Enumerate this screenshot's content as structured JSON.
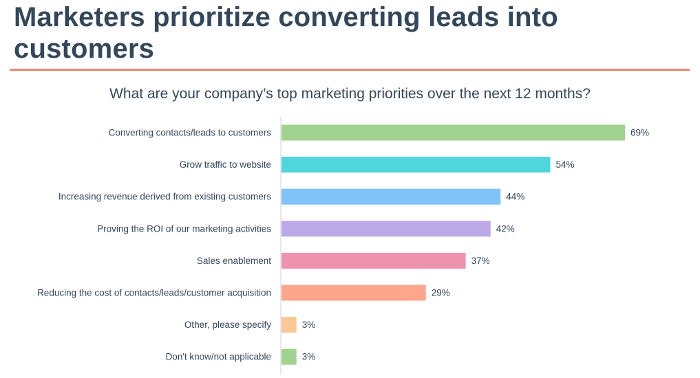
{
  "headline": "Marketers prioritize converting leads into customers",
  "chart_data": {
    "type": "bar",
    "orientation": "horizontal",
    "title": "What are your company’s top marketing priorities over the next 12 months?",
    "categories": [
      "Converting contacts/leads to customers",
      "Grow traffic to website",
      "Increasing revenue derived from existing customers",
      "Proving the ROI of our marketing activities",
      "Sales enablement",
      "Reducing the cost of contacts/leads/customer acquisition",
      "Other, please specify",
      "Don't know/not applicable"
    ],
    "values": [
      69,
      54,
      44,
      42,
      37,
      29,
      3,
      3
    ],
    "value_labels": [
      "69%",
      "54%",
      "44%",
      "42%",
      "37%",
      "29%",
      "3%",
      "3%"
    ],
    "colors": [
      "#a2d28f",
      "#4fd6dd",
      "#7fc3f8",
      "#bca9e8",
      "#ee92b0",
      "#fea58e",
      "#fbc795",
      "#a2d28f"
    ],
    "unit": "%",
    "xlim": [
      0,
      69
    ],
    "grid": false,
    "legend": "none"
  },
  "colors": {
    "headline": "#33475b",
    "rule": "#f2866b",
    "axis": "#c9d2dc",
    "label": "#33475b"
  }
}
